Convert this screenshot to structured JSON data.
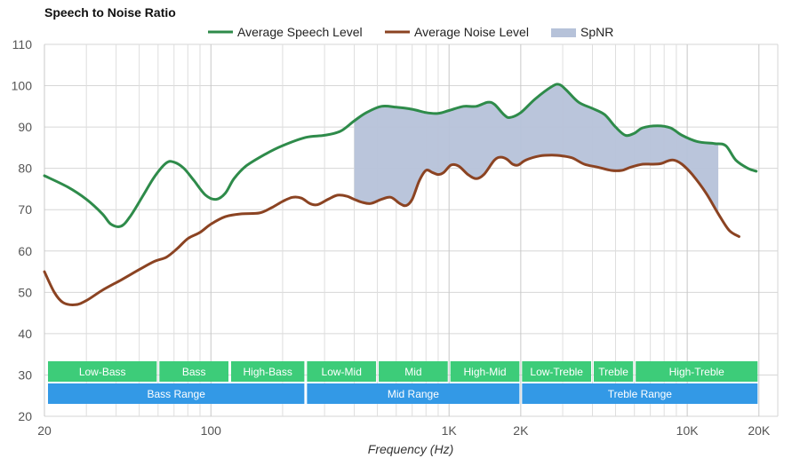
{
  "chart_data": {
    "type": "line",
    "title": "Speech to Noise Ratio",
    "xlabel": "Frequency (Hz)",
    "ylabel": "",
    "x_scale": "log",
    "xlim": [
      20,
      24000
    ],
    "ylim": [
      20,
      110
    ],
    "yticks": [
      20,
      30,
      40,
      50,
      60,
      70,
      80,
      90,
      100,
      110
    ],
    "xticks": [
      {
        "value": 20,
        "label": "20"
      },
      {
        "value": 100,
        "label": "100"
      },
      {
        "value": 1000,
        "label": "1K"
      },
      {
        "value": 2000,
        "label": "2K"
      },
      {
        "value": 10000,
        "label": "10K"
      },
      {
        "value": 20000,
        "label": "20K"
      }
    ],
    "minor_x_grid": [
      30,
      40,
      50,
      60,
      70,
      80,
      90,
      200,
      300,
      400,
      500,
      600,
      700,
      800,
      900,
      3000,
      4000,
      5000,
      6000,
      7000,
      8000,
      9000
    ],
    "grid": true,
    "legend_position": "top-center",
    "series": [
      {
        "name": "Average Speech Level",
        "color": "#2e8b4a",
        "points": [
          [
            20,
            78.2
          ],
          [
            25,
            75.5
          ],
          [
            30,
            72.5
          ],
          [
            35,
            69
          ],
          [
            38,
            66.5
          ],
          [
            42,
            66
          ],
          [
            46,
            68.5
          ],
          [
            52,
            73.5
          ],
          [
            58,
            78
          ],
          [
            65,
            81.3
          ],
          [
            70,
            81.5
          ],
          [
            77,
            80
          ],
          [
            85,
            77
          ],
          [
            95,
            73.5
          ],
          [
            105,
            72.5
          ],
          [
            115,
            74
          ],
          [
            125,
            77.5
          ],
          [
            140,
            80.5
          ],
          [
            170,
            83.5
          ],
          [
            200,
            85.5
          ],
          [
            250,
            87.5
          ],
          [
            300,
            88
          ],
          [
            350,
            89
          ],
          [
            400,
            91.5
          ],
          [
            450,
            93.5
          ],
          [
            520,
            95
          ],
          [
            600,
            94.8
          ],
          [
            700,
            94.3
          ],
          [
            800,
            93.5
          ],
          [
            900,
            93.3
          ],
          [
            1000,
            94
          ],
          [
            1150,
            95
          ],
          [
            1300,
            95
          ],
          [
            1450,
            96
          ],
          [
            1550,
            95.5
          ],
          [
            1700,
            93
          ],
          [
            1800,
            92.3
          ],
          [
            2000,
            93.5
          ],
          [
            2300,
            96.8
          ],
          [
            2700,
            99.8
          ],
          [
            2900,
            100.3
          ],
          [
            3100,
            99
          ],
          [
            3500,
            96
          ],
          [
            4000,
            94.5
          ],
          [
            4500,
            93
          ],
          [
            5000,
            90
          ],
          [
            5500,
            88
          ],
          [
            6000,
            88.5
          ],
          [
            6500,
            89.8
          ],
          [
            7500,
            90.3
          ],
          [
            8500,
            89.8
          ],
          [
            9500,
            88
          ],
          [
            11000,
            86.5
          ],
          [
            13000,
            86
          ],
          [
            14500,
            85.5
          ],
          [
            16000,
            82
          ],
          [
            18000,
            80
          ],
          [
            19500,
            79.3
          ]
        ]
      },
      {
        "name": "Average Noise Level",
        "color": "#8b4322",
        "points": [
          [
            20,
            55
          ],
          [
            22,
            50
          ],
          [
            24,
            47.5
          ],
          [
            27,
            47
          ],
          [
            30,
            48
          ],
          [
            35,
            50.5
          ],
          [
            42,
            53
          ],
          [
            50,
            55.5
          ],
          [
            58,
            57.5
          ],
          [
            65,
            58.5
          ],
          [
            72,
            60.5
          ],
          [
            80,
            63
          ],
          [
            90,
            64.5
          ],
          [
            100,
            66.5
          ],
          [
            115,
            68.3
          ],
          [
            135,
            69
          ],
          [
            160,
            69.2
          ],
          [
            180,
            70.5
          ],
          [
            200,
            72
          ],
          [
            220,
            73
          ],
          [
            240,
            72.8
          ],
          [
            260,
            71.5
          ],
          [
            280,
            71.2
          ],
          [
            310,
            72.5
          ],
          [
            340,
            73.5
          ],
          [
            370,
            73.3
          ],
          [
            400,
            72.5
          ],
          [
            430,
            71.8
          ],
          [
            470,
            71.5
          ],
          [
            520,
            72.5
          ],
          [
            570,
            73
          ],
          [
            620,
            71.5
          ],
          [
            660,
            71
          ],
          [
            700,
            72.5
          ],
          [
            750,
            77
          ],
          [
            800,
            79.5
          ],
          [
            850,
            79
          ],
          [
            900,
            78.5
          ],
          [
            950,
            79
          ],
          [
            1020,
            80.8
          ],
          [
            1100,
            80.5
          ],
          [
            1200,
            78.5
          ],
          [
            1300,
            77.5
          ],
          [
            1400,
            78.5
          ],
          [
            1550,
            82
          ],
          [
            1650,
            82.7
          ],
          [
            1750,
            82.2
          ],
          [
            1850,
            81
          ],
          [
            1950,
            80.8
          ],
          [
            2100,
            82
          ],
          [
            2400,
            83
          ],
          [
            2700,
            83.2
          ],
          [
            3000,
            83
          ],
          [
            3300,
            82.5
          ],
          [
            3700,
            81
          ],
          [
            4200,
            80.3
          ],
          [
            4800,
            79.5
          ],
          [
            5300,
            79.5
          ],
          [
            5800,
            80.3
          ],
          [
            6500,
            81
          ],
          [
            7200,
            81
          ],
          [
            7800,
            81.2
          ],
          [
            8300,
            81.8
          ],
          [
            8800,
            82
          ],
          [
            9500,
            81
          ],
          [
            10500,
            78.5
          ],
          [
            12000,
            74
          ],
          [
            13500,
            69
          ],
          [
            15000,
            65
          ],
          [
            16500,
            63.5
          ]
        ]
      }
    ],
    "spnr": {
      "name": "SpNR",
      "color": "#b6c2d9",
      "x_range": [
        400,
        13500
      ],
      "upper_series": "Average Speech Level",
      "lower_series": "Average Noise Level"
    },
    "bands": [
      {
        "label": "Low-Bass",
        "from": 20,
        "to": 60,
        "row": 0,
        "color": "#3dcc79"
      },
      {
        "label": "Bass",
        "from": 60,
        "to": 120,
        "row": 0,
        "color": "#3dcc79"
      },
      {
        "label": "High-Bass",
        "from": 120,
        "to": 250,
        "row": 0,
        "color": "#3dcc79"
      },
      {
        "label": "Low-Mid",
        "from": 250,
        "to": 500,
        "row": 0,
        "color": "#3dcc79"
      },
      {
        "label": "Mid",
        "from": 500,
        "to": 1000,
        "row": 0,
        "color": "#3dcc79"
      },
      {
        "label": "High-Mid",
        "from": 1000,
        "to": 2000,
        "row": 0,
        "color": "#3dcc79"
      },
      {
        "label": "Low-Treble",
        "from": 2000,
        "to": 4000,
        "row": 0,
        "color": "#3dcc79"
      },
      {
        "label": "Treble",
        "from": 4000,
        "to": 6000,
        "row": 0,
        "color": "#3dcc79"
      },
      {
        "label": "High-Treble",
        "from": 6000,
        "to": 20000,
        "row": 0,
        "color": "#3dcc79"
      },
      {
        "label": "Bass Range",
        "from": 20,
        "to": 250,
        "row": 1,
        "color": "#3399e6"
      },
      {
        "label": "Mid Range",
        "from": 250,
        "to": 2000,
        "row": 1,
        "color": "#3399e6"
      },
      {
        "label": "Treble Range",
        "from": 2000,
        "to": 20000,
        "row": 1,
        "color": "#3399e6"
      }
    ]
  }
}
